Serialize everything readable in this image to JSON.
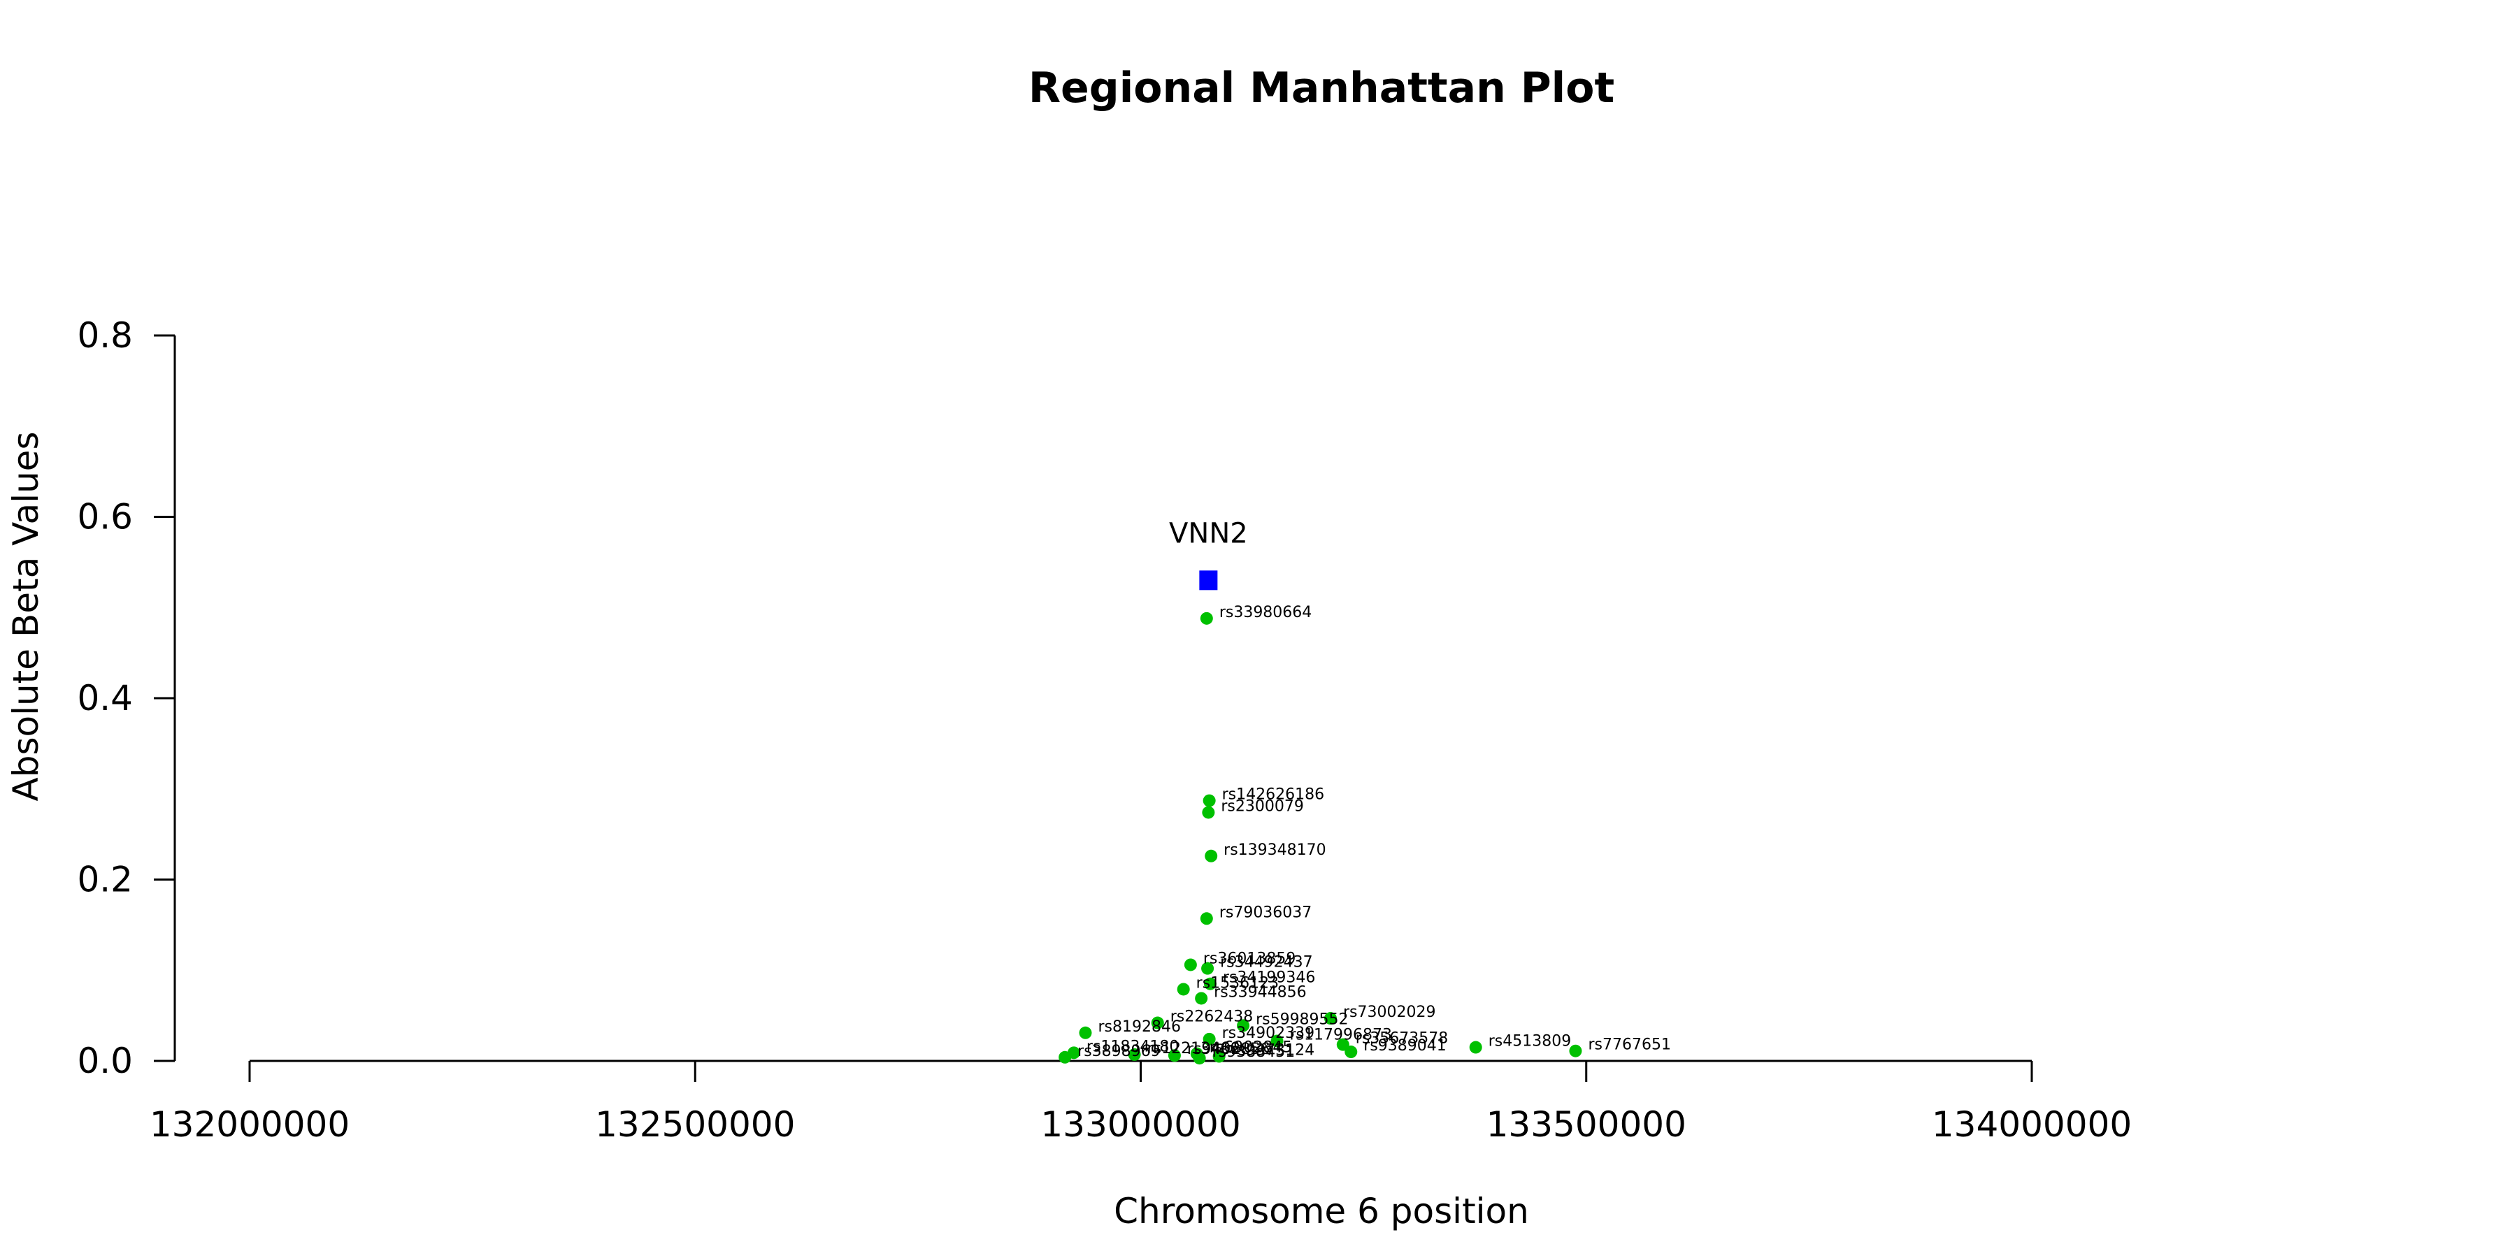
{
  "chart_data": {
    "type": "scatter",
    "title": "Regional Manhattan Plot",
    "xlabel": "Chromosome 6 position",
    "ylabel": "Absolute Beta Values",
    "xlim": [
      132000000,
      134000000
    ],
    "ylim": [
      0,
      0.8
    ],
    "x_ticks": [
      "132000000",
      "132500000",
      "133000000",
      "133500000",
      "134000000"
    ],
    "y_ticks": [
      "0.0",
      "0.2",
      "0.4",
      "0.6",
      "0.8"
    ],
    "grid": false,
    "colors": {
      "snp": "#00c000",
      "gene": "#0000ff"
    },
    "gene": {
      "name": "VNN2",
      "x": 133076000,
      "y": 0.53
    },
    "snps": [
      {
        "label": "rs33980664",
        "x": 133074000,
        "y": 0.488
      },
      {
        "label": "rs142626186",
        "x": 133077000,
        "y": 0.287
      },
      {
        "label": "rs2300079",
        "x": 133076000,
        "y": 0.274
      },
      {
        "label": "rs139348170",
        "x": 133079000,
        "y": 0.226
      },
      {
        "label": "rs79036037",
        "x": 133074000,
        "y": 0.157
      },
      {
        "label": "rs36013859",
        "x": 133056000,
        "y": 0.106
      },
      {
        "label": "rs34492437",
        "x": 133075000,
        "y": 0.102
      },
      {
        "label": "rs34199346",
        "x": 133078000,
        "y": 0.085
      },
      {
        "label": "rs1536123",
        "x": 133048000,
        "y": 0.079
      },
      {
        "label": "rs33944856",
        "x": 133068000,
        "y": 0.069
      },
      {
        "label": "rs73002029",
        "x": 133213000,
        "y": 0.047
      },
      {
        "label": "rs2262438",
        "x": 133019000,
        "y": 0.042
      },
      {
        "label": "rs59989552",
        "x": 133115000,
        "y": 0.039
      },
      {
        "label": "rs8192846",
        "x": 132938000,
        "y": 0.031
      },
      {
        "label": "rs34902339",
        "x": 133077000,
        "y": 0.024
      },
      {
        "label": "rs117996873",
        "x": 133153000,
        "y": 0.022
      },
      {
        "label": "rs35673578",
        "x": 133227000,
        "y": 0.018
      },
      {
        "label": "rs4513809",
        "x": 133376000,
        "y": 0.015
      },
      {
        "label": "rs7767651",
        "x": 133488000,
        "y": 0.011
      },
      {
        "label": "rs9389041",
        "x": 133236000,
        "y": 0.01
      },
      {
        "label": "rs11834180",
        "x": 132925000,
        "y": 0.009
      },
      {
        "label": "rs6902845",
        "x": 133063000,
        "y": 0.008
      },
      {
        "label": "rs12213466",
        "x": 132993000,
        "y": 0.007
      },
      {
        "label": "rs9402856",
        "x": 133038000,
        "y": 0.006
      },
      {
        "label": "rs9373124",
        "x": 133088000,
        "y": 0.005
      },
      {
        "label": "rs3898969",
        "x": 132915000,
        "y": 0.004
      },
      {
        "label": "rs9388451",
        "x": 133066000,
        "y": 0.003
      }
    ]
  }
}
